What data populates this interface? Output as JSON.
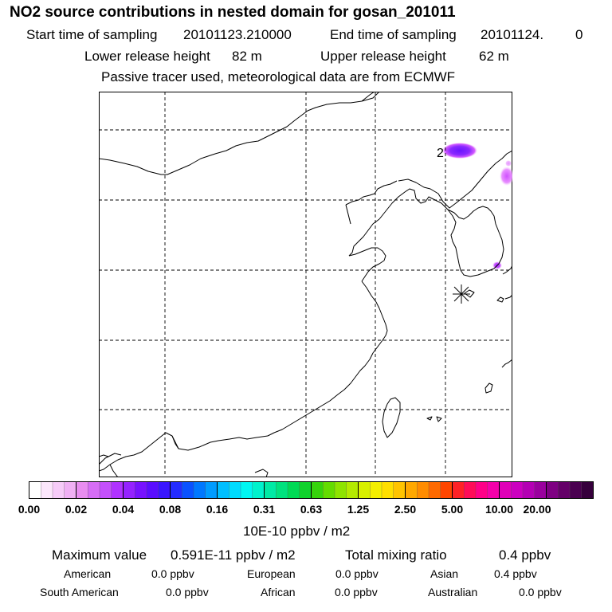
{
  "header": {
    "title": "NO2 source contributions in nested domain for gosan_201011",
    "start_label": "Start time of sampling",
    "start_value": "20101123.210000",
    "end_label": "End time of sampling",
    "end_value": "20101124.",
    "end_suffix": "0",
    "lower_label": "Lower release height",
    "lower_value": "82 m",
    "upper_label": "Upper release height",
    "upper_value": "62 m",
    "tracer_note": "Passive tracer used, meteorological data are from ECMWF"
  },
  "map": {
    "contour_label": "2",
    "colors": {
      "land_line": "#000000",
      "grid_line": "#000000",
      "plume_outer": "#e46bff",
      "plume_inner": "#7a1cff",
      "plume_light": "#f1b6ff"
    }
  },
  "colorbar": {
    "unit": "10E-10 ppbv / m2",
    "tick_labels": [
      "0.00",
      "0.02",
      "0.04",
      "0.08",
      "0.16",
      "0.31",
      "0.63",
      "1.25",
      "2.50",
      "5.00",
      "10.00",
      "20.00"
    ],
    "colors": [
      "#ffffff",
      "#fbe6fb",
      "#f6cbf8",
      "#f0b0f4",
      "#e88df0",
      "#d66df5",
      "#c450fb",
      "#b032ff",
      "#9522ff",
      "#7712ff",
      "#5a0eff",
      "#3a16ff",
      "#242cff",
      "#0a52ff",
      "#0078ff",
      "#009cff",
      "#00bfff",
      "#00dcff",
      "#00f6f2",
      "#00f2cc",
      "#00eaa5",
      "#00e27e",
      "#00da55",
      "#10d22c",
      "#36d40c",
      "#64dc00",
      "#8ee400",
      "#b4ea00",
      "#d8f000",
      "#f4ee00",
      "#ffdf00",
      "#ffc400",
      "#ffa800",
      "#ff8c00",
      "#ff6a00",
      "#ff4600",
      "#ff2226",
      "#ff0c58",
      "#ff0088",
      "#f400aa",
      "#e000b8",
      "#cc00c0",
      "#b400b4",
      "#9a009e",
      "#7e0082",
      "#640068",
      "#4a0050",
      "#36003c"
    ]
  },
  "footer": {
    "max_label": "Maximum value",
    "max_value": "0.591E-11 ppbv / m2",
    "total_label": "Total mixing ratio",
    "total_value": "0.4 ppbv",
    "regions": [
      {
        "name": "American",
        "value": "0.0 ppbv"
      },
      {
        "name": "European",
        "value": "0.0 ppbv"
      },
      {
        "name": "Asian",
        "value": "0.4 ppbv"
      },
      {
        "name": "South American",
        "value": "0.0 ppbv"
      },
      {
        "name": "African",
        "value": "0.0 ppbv"
      },
      {
        "name": "Australian",
        "value": "0.0 ppbv"
      }
    ]
  }
}
